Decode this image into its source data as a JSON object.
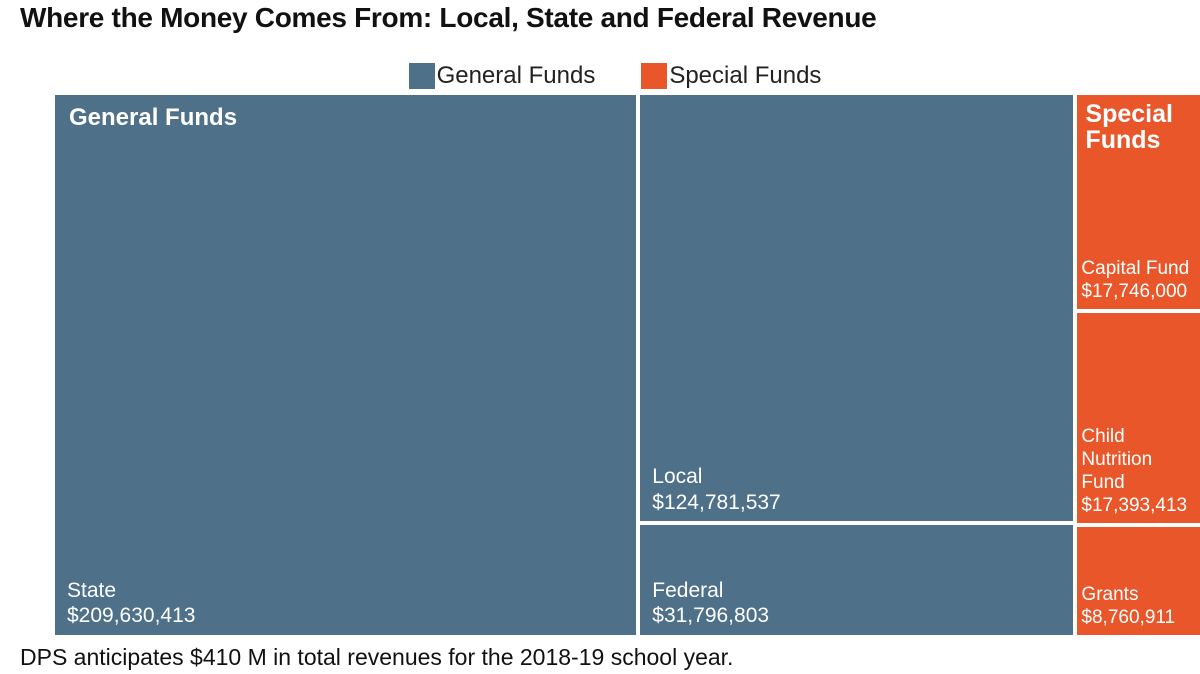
{
  "chart_data": {
    "type": "treemap",
    "title": "Where the Money Comes From: Local, State and Federal Revenue",
    "series": [
      {
        "name": "General Funds",
        "color": "#4e7088",
        "categories": [
          "State",
          "Local",
          "Federal"
        ],
        "values": [
          209630413,
          124781537,
          31796803
        ],
        "value_labels": [
          "$209,630,413",
          "$124,781,537",
          "$31,796,803"
        ]
      },
      {
        "name": "Special Funds",
        "color": "#e8562a",
        "categories": [
          "Capital Fund",
          "Child Nutrition Fund",
          "Grants"
        ],
        "values": [
          17746000,
          17393413,
          8760911
        ],
        "value_labels": [
          "$17,746,000",
          "$17,393,413",
          "$8,760,911"
        ]
      }
    ],
    "annotation": "DPS anticipates $410 M in total revenues for the 2018-19 school year."
  }
}
